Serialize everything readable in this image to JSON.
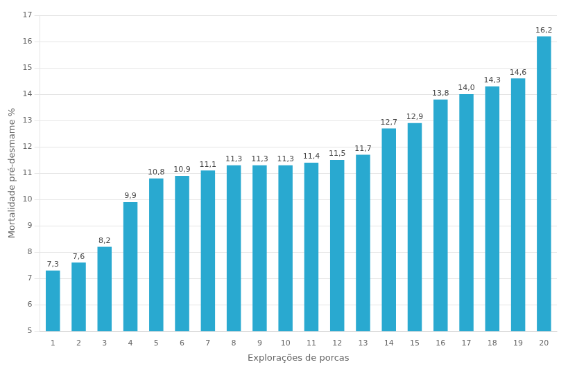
{
  "chart_data": {
    "type": "bar",
    "categories": [
      "1",
      "2",
      "3",
      "4",
      "5",
      "6",
      "7",
      "8",
      "9",
      "10",
      "11",
      "12",
      "13",
      "14",
      "15",
      "16",
      "17",
      "18",
      "19",
      "20"
    ],
    "values": [
      7.3,
      7.6,
      8.2,
      9.9,
      10.8,
      10.9,
      11.1,
      11.3,
      11.3,
      11.3,
      11.4,
      11.5,
      11.7,
      12.7,
      12.9,
      13.8,
      14.0,
      14.3,
      14.6,
      16.2
    ],
    "value_labels": [
      "7,3",
      "7,6",
      "8,2",
      "9,9",
      "10,8",
      "10,9",
      "11,1",
      "11,3",
      "11,3",
      "11,3",
      "11,4",
      "11,5",
      "11,7",
      "12,7",
      "12,9",
      "13,8",
      "14,0",
      "14,3",
      "14,6",
      "16,2"
    ],
    "color": "#29a9d0",
    "xlabel": "Explorações de porcas",
    "ylabel": "Mortalidade pré-desmame %",
    "ylim": [
      5,
      17
    ],
    "yticks": [
      5,
      6,
      7,
      8,
      9,
      10,
      11,
      12,
      13,
      14,
      15,
      16,
      17
    ],
    "grid": true,
    "data_labels": true
  }
}
